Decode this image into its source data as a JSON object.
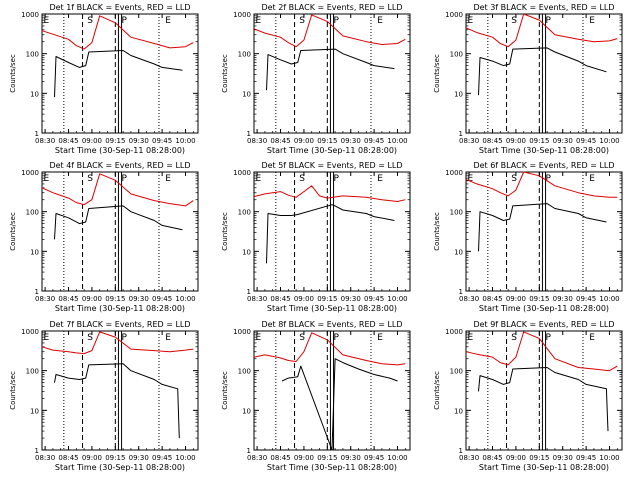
{
  "colors": {
    "events": "#000000",
    "lld": "#dd0000",
    "axes": "#000000",
    "background": "#ffffff"
  },
  "chart_data": [
    {
      "type": "line",
      "title": "Det 1f BLACK = Events, RED = LLD",
      "xlabel": "Start Time (30-Sep-11 08:28:00)",
      "ylabel": "Counts/sec",
      "yscale": "log",
      "ylim": [
        1,
        1000
      ],
      "xlim_minutes_label": "08:28 to 10:08",
      "xtick_labels": [
        "08:30",
        "08:45",
        "09:00",
        "09:15",
        "09:30",
        "09:45",
        "10:00"
      ],
      "ytick_labels": [
        "1",
        "10",
        "100",
        "1000"
      ],
      "marker_labels": [
        "E",
        "S",
        "P",
        "E"
      ],
      "series": [
        {
          "name": "LLD",
          "x": [
            "08:28",
            "08:35",
            "08:45",
            "08:50",
            "08:55",
            "09:00",
            "09:05",
            "09:15",
            "09:25",
            "09:40",
            "09:50",
            "10:00",
            "10:05"
          ],
          "y": [
            380,
            310,
            230,
            160,
            130,
            190,
            900,
            600,
            260,
            180,
            140,
            150,
            190
          ]
        },
        {
          "name": "Events",
          "x": [
            "08:36",
            "08:37",
            "08:45",
            "08:52",
            "08:56",
            "08:58",
            "09:20",
            "09:25",
            "09:40",
            "09:45",
            "09:58"
          ],
          "y": [
            8,
            85,
            60,
            45,
            50,
            110,
            120,
            90,
            55,
            45,
            38
          ]
        }
      ]
    },
    {
      "type": "line",
      "title": "Det 2f BLACK = Events, RED = LLD",
      "xlabel": "Start Time (30-Sep-11 08:28:00)",
      "ylabel": "Counts/sec",
      "yscale": "log",
      "ylim": [
        1,
        1000
      ],
      "xtick_labels": [
        "08:30",
        "08:45",
        "09:00",
        "09:15",
        "09:30",
        "09:45",
        "10:00"
      ],
      "ytick_labels": [
        "1",
        "10",
        "100",
        "1000"
      ],
      "marker_labels": [
        "E",
        "S",
        "P",
        "E"
      ],
      "series": [
        {
          "name": "LLD",
          "x": [
            "08:28",
            "08:35",
            "08:45",
            "08:50",
            "08:55",
            "09:00",
            "09:05",
            "09:15",
            "09:25",
            "09:40",
            "09:50",
            "10:00",
            "10:05"
          ],
          "y": [
            420,
            330,
            260,
            190,
            150,
            220,
            950,
            650,
            280,
            200,
            170,
            180,
            230
          ]
        },
        {
          "name": "Events",
          "x": [
            "08:36",
            "08:37",
            "08:45",
            "08:52",
            "08:56",
            "08:58",
            "09:20",
            "09:25",
            "09:40",
            "09:45",
            "09:58"
          ],
          "y": [
            12,
            95,
            70,
            55,
            60,
            120,
            130,
            100,
            60,
            50,
            42
          ]
        }
      ]
    },
    {
      "type": "line",
      "title": "Det 3f BLACK = Events, RED = LLD",
      "xlabel": "Start Time (30-Sep-11 08:28:00)",
      "ylabel": "Counts/sec",
      "yscale": "log",
      "ylim": [
        1,
        1000
      ],
      "xtick_labels": [
        "08:30",
        "08:45",
        "09:00",
        "09:15",
        "09:30",
        "09:45",
        "10:00"
      ],
      "ytick_labels": [
        "1",
        "10",
        "100",
        "1000"
      ],
      "marker_labels": [
        "E",
        "S",
        "P",
        "E"
      ],
      "series": [
        {
          "name": "LLD",
          "x": [
            "08:28",
            "08:35",
            "08:45",
            "08:50",
            "08:55",
            "09:00",
            "09:05",
            "09:15",
            "09:25",
            "09:40",
            "09:50",
            "10:00",
            "10:05"
          ],
          "y": [
            450,
            340,
            260,
            180,
            150,
            220,
            1000,
            700,
            300,
            230,
            200,
            210,
            240
          ]
        },
        {
          "name": "Events",
          "x": [
            "08:36",
            "08:37",
            "08:45",
            "08:52",
            "08:56",
            "08:58",
            "09:20",
            "09:25",
            "09:40",
            "09:45",
            "09:58"
          ],
          "y": [
            9,
            80,
            65,
            50,
            55,
            130,
            140,
            110,
            65,
            50,
            35
          ]
        }
      ]
    },
    {
      "type": "line",
      "title": "Det 4f BLACK = Events, RED = LLD",
      "xlabel": "Start Time (30-Sep-11 08:28:00)",
      "ylabel": "Counts/sec",
      "yscale": "log",
      "ylim": [
        1,
        1000
      ],
      "xtick_labels": [
        "08:30",
        "08:45",
        "09:00",
        "09:15",
        "09:30",
        "09:45",
        "10:00"
      ],
      "ytick_labels": [
        "1",
        "10",
        "100",
        "1000"
      ],
      "marker_labels": [
        "E",
        "S",
        "P",
        "E"
      ],
      "series": [
        {
          "name": "LLD",
          "x": [
            "08:28",
            "08:35",
            "08:45",
            "08:50",
            "08:55",
            "09:00",
            "09:05",
            "09:15",
            "09:25",
            "09:40",
            "09:50",
            "10:00",
            "10:05"
          ],
          "y": [
            400,
            300,
            220,
            170,
            150,
            200,
            900,
            620,
            280,
            190,
            160,
            140,
            190
          ]
        },
        {
          "name": "Events",
          "x": [
            "08:36",
            "08:37",
            "08:45",
            "08:52",
            "08:56",
            "08:58",
            "09:20",
            "09:25",
            "09:40",
            "09:45",
            "09:58"
          ],
          "y": [
            20,
            90,
            70,
            50,
            55,
            120,
            140,
            100,
            60,
            45,
            35
          ]
        }
      ]
    },
    {
      "type": "line",
      "title": "Det 5f BLACK = Events, RED = LLD",
      "xlabel": "Start Time (30-Sep-11 08:28:00)",
      "ylabel": "Counts/sec",
      "yscale": "log",
      "ylim": [
        1,
        1000
      ],
      "xtick_labels": [
        "08:30",
        "08:45",
        "09:00",
        "09:15",
        "09:30",
        "09:45",
        "10:00"
      ],
      "ytick_labels": [
        "1",
        "10",
        "100",
        "1000"
      ],
      "marker_labels": [
        "E",
        "S",
        "P",
        "E"
      ],
      "series": [
        {
          "name": "LLD",
          "x": [
            "08:28",
            "08:35",
            "08:45",
            "08:50",
            "08:55",
            "09:00",
            "09:05",
            "09:10",
            "09:15",
            "09:25",
            "09:40",
            "09:50",
            "10:00",
            "10:05"
          ],
          "y": [
            240,
            280,
            320,
            260,
            230,
            320,
            450,
            250,
            220,
            250,
            230,
            200,
            180,
            200
          ]
        },
        {
          "name": "Events",
          "x": [
            "08:36",
            "08:37",
            "08:45",
            "08:52",
            "08:56",
            "09:18",
            "09:20",
            "09:25",
            "09:40",
            "09:45",
            "09:58"
          ],
          "y": [
            5,
            90,
            80,
            80,
            85,
            150,
            140,
            110,
            90,
            75,
            60
          ]
        }
      ]
    },
    {
      "type": "line",
      "title": "Det 6f BLACK = Events, RED = LLD",
      "xlabel": "Start Time (30-Sep-11 08:28:00)",
      "ylabel": "Counts/sec",
      "yscale": "log",
      "ylim": [
        1,
        1000
      ],
      "xtick_labels": [
        "08:30",
        "08:45",
        "09:00",
        "09:15",
        "09:30",
        "09:45",
        "10:00"
      ],
      "ytick_labels": [
        "1",
        "10",
        "100",
        "1000"
      ],
      "marker_labels": [
        "E",
        "S",
        "P",
        "E"
      ],
      "series": [
        {
          "name": "LLD",
          "x": [
            "08:28",
            "08:35",
            "08:45",
            "08:50",
            "08:55",
            "09:00",
            "09:05",
            "09:15",
            "09:25",
            "09:40",
            "09:50",
            "10:00",
            "10:05"
          ],
          "y": [
            650,
            500,
            380,
            300,
            250,
            350,
            1000,
            800,
            450,
            300,
            250,
            230,
            230
          ]
        },
        {
          "name": "Events",
          "x": [
            "08:36",
            "08:37",
            "08:45",
            "08:52",
            "08:56",
            "08:58",
            "09:20",
            "09:25",
            "09:40",
            "09:45",
            "09:58"
          ],
          "y": [
            10,
            100,
            80,
            60,
            65,
            140,
            160,
            120,
            90,
            70,
            55
          ]
        }
      ]
    },
    {
      "type": "line",
      "title": "Det 7f BLACK = Events, RED = LLD",
      "xlabel": "Start Time (30-Sep-11 08:28:00)",
      "ylabel": "Counts/sec",
      "yscale": "log",
      "ylim": [
        1,
        1000
      ],
      "xtick_labels": [
        "08:30",
        "08:45",
        "09:00",
        "09:15",
        "09:30",
        "09:45",
        "10:00"
      ],
      "ytick_labels": [
        "1",
        "10",
        "100",
        "1000"
      ],
      "marker_labels": [
        "E",
        "S",
        "P",
        "E"
      ],
      "series": [
        {
          "name": "LLD",
          "x": [
            "08:28",
            "08:35",
            "08:45",
            "08:50",
            "08:55",
            "09:00",
            "09:05",
            "09:15",
            "09:25",
            "09:40",
            "09:50",
            "10:00",
            "10:05"
          ],
          "y": [
            400,
            330,
            300,
            280,
            270,
            320,
            950,
            700,
            350,
            320,
            300,
            330,
            350
          ]
        },
        {
          "name": "Events",
          "x": [
            "08:36",
            "08:37",
            "08:45",
            "08:52",
            "08:56",
            "08:58",
            "09:20",
            "09:25",
            "09:40",
            "09:45",
            "09:55",
            "09:56"
          ],
          "y": [
            50,
            80,
            65,
            60,
            65,
            140,
            150,
            100,
            60,
            45,
            35,
            2
          ]
        }
      ]
    },
    {
      "type": "line",
      "title": "Det 8f BLACK = Events, RED = LLD",
      "xlabel": "Start Time (30-Sep-11 08:28:00)",
      "ylabel": "Counts/sec",
      "yscale": "log",
      "ylim": [
        1,
        1000
      ],
      "xtick_labels": [
        "08:30",
        "08:45",
        "09:00",
        "09:15",
        "09:30",
        "09:45",
        "10:00"
      ],
      "ytick_labels": [
        "1",
        "10",
        "100",
        "1000"
      ],
      "marker_labels": [
        "E",
        "S",
        "P",
        "E"
      ],
      "series": [
        {
          "name": "LLD",
          "x": [
            "08:28",
            "08:35",
            "08:45",
            "08:50",
            "08:55",
            "09:00",
            "09:05",
            "09:15",
            "09:25",
            "09:40",
            "09:50",
            "10:00",
            "10:05"
          ],
          "y": [
            220,
            250,
            210,
            180,
            170,
            300,
            900,
            600,
            250,
            180,
            150,
            140,
            150
          ]
        },
        {
          "name": "Events",
          "x": [
            "08:46",
            "08:50",
            "08:56",
            "08:58",
            "09:18",
            "09:20",
            "09:25",
            "09:35",
            "09:45",
            "09:55",
            "10:00"
          ],
          "y": [
            55,
            65,
            70,
            130,
            1,
            200,
            160,
            110,
            80,
            65,
            55
          ]
        }
      ]
    },
    {
      "type": "line",
      "title": "Det 9f BLACK = Events, RED = LLD",
      "xlabel": "Start Time (30-Sep-11 08:28:00)",
      "ylabel": "Counts/sec",
      "yscale": "log",
      "ylim": [
        1,
        1000
      ],
      "xtick_labels": [
        "08:30",
        "08:45",
        "09:00",
        "09:15",
        "09:30",
        "09:45",
        "10:00"
      ],
      "ytick_labels": [
        "1",
        "10",
        "100",
        "1000"
      ],
      "marker_labels": [
        "E",
        "S",
        "P",
        "E"
      ],
      "series": [
        {
          "name": "LLD",
          "x": [
            "08:28",
            "08:35",
            "08:45",
            "08:50",
            "08:55",
            "09:00",
            "09:05",
            "09:15",
            "09:25",
            "09:40",
            "09:50",
            "10:00",
            "10:05"
          ],
          "y": [
            300,
            260,
            220,
            160,
            140,
            220,
            950,
            650,
            200,
            120,
            110,
            100,
            130
          ]
        },
        {
          "name": "Events",
          "x": [
            "08:36",
            "08:37",
            "08:45",
            "08:52",
            "08:56",
            "08:58",
            "09:20",
            "09:25",
            "09:40",
            "09:45",
            "09:58",
            "09:59"
          ],
          "y": [
            30,
            75,
            60,
            45,
            50,
            110,
            120,
            90,
            60,
            45,
            35,
            3
          ]
        }
      ]
    }
  ]
}
